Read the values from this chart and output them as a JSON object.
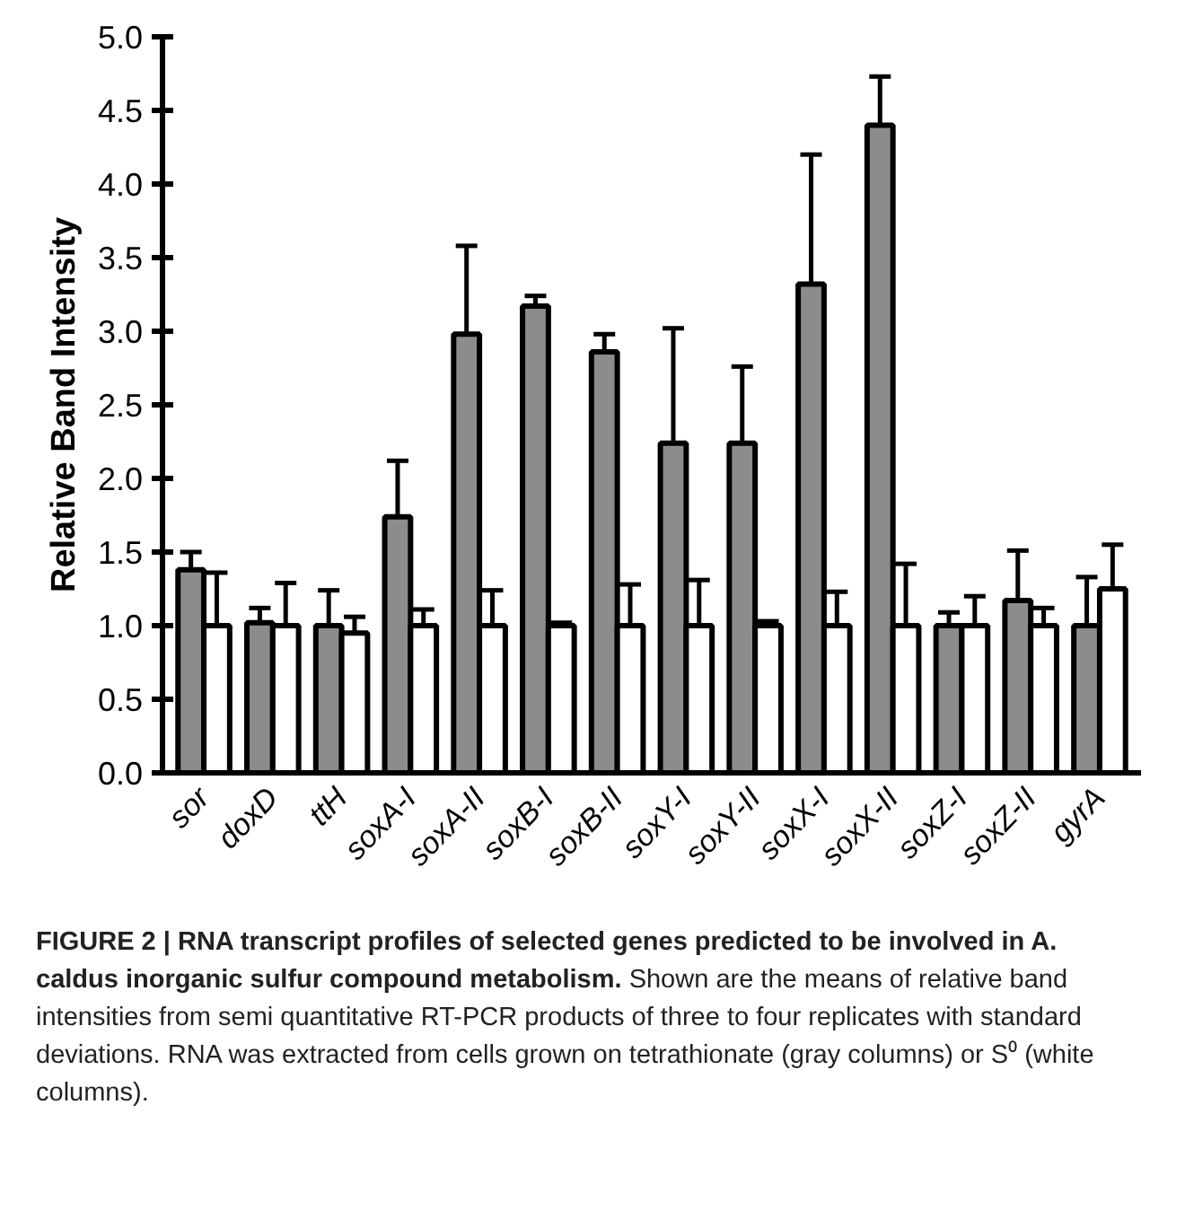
{
  "chart_data": {
    "type": "bar",
    "ylabel": "Relative Band Intensity",
    "categories": [
      "sor",
      "doxD",
      "ttH",
      "soxA-I",
      "soxA-II",
      "soxB-I",
      "soxB-II",
      "soxY-I",
      "soxY-II",
      "soxX-I",
      "soxX-II",
      "soxZ-I",
      "soxZ-II",
      "gyrA"
    ],
    "series": [
      {
        "color": "#8c8c8c",
        "values": [
          1.38,
          1.02,
          1.0,
          1.74,
          2.98,
          3.17,
          2.86,
          2.24,
          2.24,
          3.32,
          4.4,
          1.0,
          1.17,
          1.0
        ],
        "errors": [
          0.12,
          0.1,
          0.24,
          0.38,
          0.6,
          0.07,
          0.12,
          0.78,
          0.52,
          0.88,
          0.33,
          0.09,
          0.34,
          0.33
        ]
      },
      {
        "color": "#ffffff",
        "values": [
          1.0,
          1.0,
          0.95,
          1.0,
          1.0,
          1.0,
          1.0,
          1.0,
          1.0,
          1.0,
          1.0,
          1.0,
          1.0,
          1.25
        ],
        "errors": [
          0.36,
          0.29,
          0.11,
          0.11,
          0.24,
          0.02,
          0.28,
          0.31,
          0.03,
          0.23,
          0.42,
          0.2,
          0.12,
          0.3
        ]
      }
    ],
    "ylim": [
      0,
      5
    ],
    "yticks": [
      {
        "value": 0,
        "label": "0.0"
      },
      {
        "value": 0.5,
        "label": "0.5"
      },
      {
        "value": 1,
        "label": "1.0"
      },
      {
        "value": 1.5,
        "label": "1.5"
      },
      {
        "value": 2,
        "label": "2.0"
      },
      {
        "value": 2.5,
        "label": "2.5"
      },
      {
        "value": 3,
        "label": "3.0"
      },
      {
        "value": 3.5,
        "label": "3.5"
      },
      {
        "value": 4,
        "label": "4.0"
      },
      {
        "value": 4.5,
        "label": "4.5"
      },
      {
        "value": 5,
        "label": "5.0"
      }
    ],
    "grid": false,
    "annotations": [
      "FIGURE 2 | RNA transcript profiles of selected genes predicted to be involved in A. caldus inorganic sulfur compound metabolism.",
      "Shown are the means of relative band intensities from semi quantitative RT-PCR products of three to four replicates with standard deviations. RNA was extracted from cells grown on tetrathionate (gray columns) or S⁰ (white columns)."
    ]
  }
}
